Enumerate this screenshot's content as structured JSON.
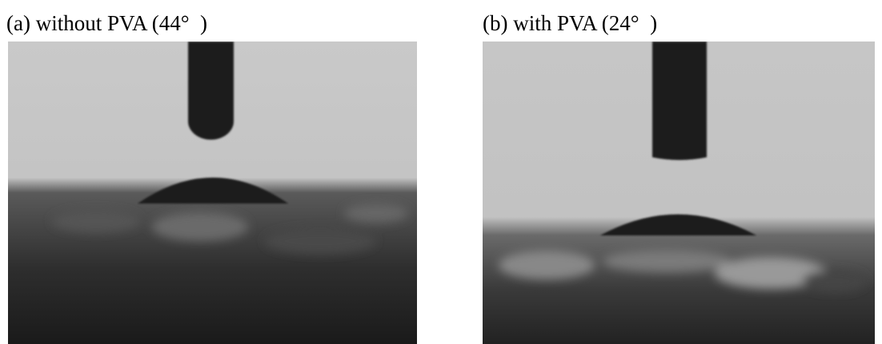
{
  "panels": [
    {
      "label": "(a) without PVA (44° )"
    },
    {
      "label": "(b) with PVA (24° )"
    }
  ]
}
